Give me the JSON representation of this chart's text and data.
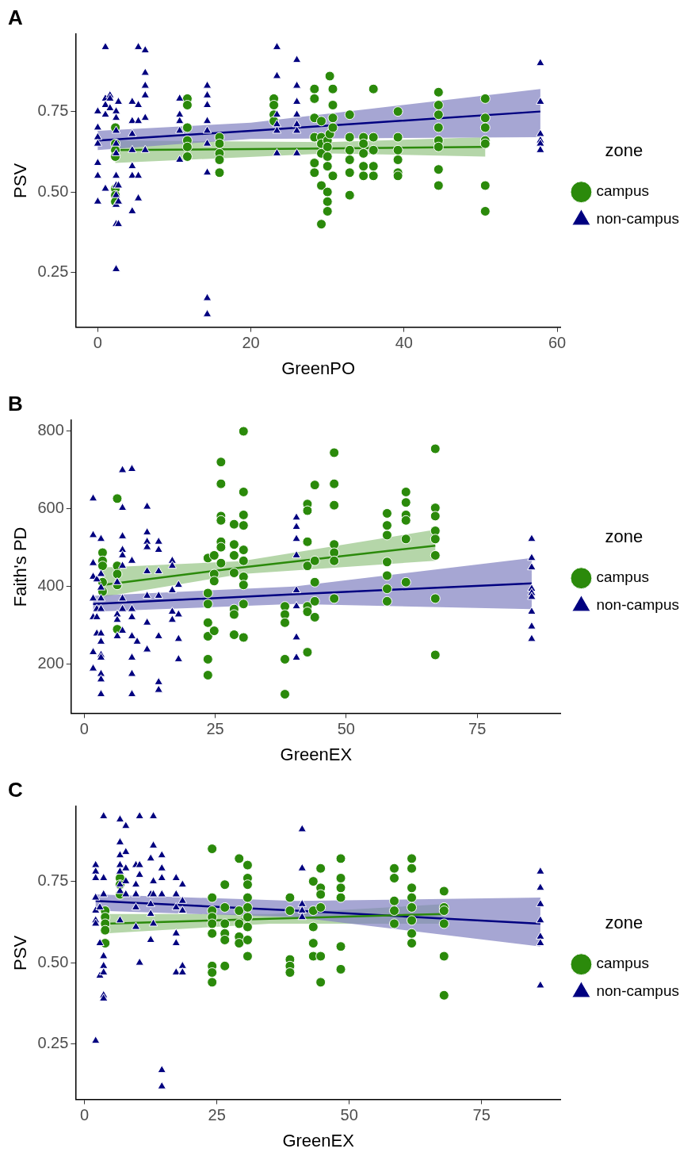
{
  "chart_data": [
    {
      "type": "scatter",
      "title": "A",
      "xlabel": "GreenPO",
      "ylabel": "PSV",
      "legend": "right",
      "legend_title": "zone",
      "grid": false,
      "xlim": [
        -2.9,
        60.5
      ],
      "xticks": [
        0,
        20,
        40,
        60
      ],
      "ylim": [
        0.08,
        0.99
      ],
      "yticks": [
        0.25,
        {
          "value": 0.5,
          "label": "0.50"
        },
        0.75
      ],
      "series": [
        {
          "name": "campus",
          "type": "scatter",
          "marker": "circle",
          "color": "#2b8a0b",
          "x": [
            2.3,
            2.3,
            2.3,
            2.3,
            2.3,
            2.3,
            2.3,
            11.7,
            11.7,
            11.7,
            11.7,
            11.7,
            11.7,
            15.9,
            15.9,
            15.9,
            15.9,
            15.9,
            23,
            23,
            23,
            23,
            28.3,
            28.3,
            28.3,
            28.3,
            28.3,
            28.3,
            29.2,
            29.2,
            29.2,
            29.2,
            29.2,
            29.2,
            30,
            30,
            30,
            30,
            30,
            30,
            30,
            30.3,
            30.3,
            30.7,
            30.7,
            30.7,
            30.7,
            30.7,
            32.9,
            32.9,
            32.9,
            32.9,
            32.9,
            32.9,
            34.7,
            34.7,
            34.7,
            34.7,
            34.7,
            36,
            36,
            36,
            36,
            36,
            39.2,
            39.2,
            39.2,
            39.2,
            39.2,
            39.2,
            44.5,
            44.5,
            44.5,
            44.5,
            44.5,
            44.5,
            44.5,
            44.5,
            50.6,
            50.6,
            50.6,
            50.6,
            50.6,
            50.6,
            50.6
          ],
          "values": [
            0.7,
            0.65,
            0.63,
            0.61,
            0.51,
            0.49,
            0.47,
            0.79,
            0.77,
            0.7,
            0.66,
            0.64,
            0.61,
            0.67,
            0.65,
            0.62,
            0.6,
            0.56,
            0.79,
            0.77,
            0.74,
            0.72,
            0.82,
            0.79,
            0.73,
            0.67,
            0.59,
            0.56,
            0.72,
            0.67,
            0.65,
            0.62,
            0.52,
            0.4,
            0.66,
            0.64,
            0.61,
            0.58,
            0.5,
            0.47,
            0.44,
            0.86,
            0.68,
            0.82,
            0.77,
            0.73,
            0.7,
            0.55,
            0.74,
            0.67,
            0.63,
            0.6,
            0.56,
            0.49,
            0.67,
            0.65,
            0.62,
            0.58,
            0.55,
            0.82,
            0.67,
            0.63,
            0.58,
            0.55,
            0.75,
            0.67,
            0.63,
            0.6,
            0.56,
            0.55,
            0.81,
            0.77,
            0.74,
            0.7,
            0.66,
            0.64,
            0.57,
            0.52,
            0.79,
            0.73,
            0.7,
            0.66,
            0.65,
            0.52,
            0.44
          ]
        },
        {
          "name": "non-campus",
          "type": "scatter",
          "marker": "triangle",
          "color": "#000080",
          "x": [
            0,
            0,
            0,
            0,
            0,
            0,
            0,
            1,
            1,
            1,
            1,
            1,
            1.6,
            1.6,
            1.6,
            2.4,
            2.4,
            2.4,
            2.4,
            2.4,
            2.4,
            2.4,
            2.4,
            2.4,
            2.4,
            2.4,
            2.7,
            2.7,
            2.7,
            2.7,
            4.5,
            4.5,
            4.5,
            4.5,
            4.5,
            4.5,
            4.5,
            5.3,
            5.3,
            5.3,
            5.3,
            5.3,
            6.2,
            6.2,
            6.2,
            6.2,
            6.2,
            6.2,
            10.7,
            10.7,
            10.7,
            10.7,
            10.7,
            14.3,
            14.3,
            14.3,
            14.3,
            14.3,
            14.3,
            14.3,
            14.3,
            14.3,
            23.4,
            23.4,
            23.4,
            23.4,
            23.4,
            23.4,
            26,
            26,
            26,
            26,
            26,
            26,
            26,
            57.8,
            57.8,
            57.8,
            57.8,
            57.8,
            57.8
          ],
          "values": [
            0.75,
            0.7,
            0.67,
            0.65,
            0.59,
            0.55,
            0.47,
            0.95,
            0.79,
            0.77,
            0.74,
            0.51,
            0.8,
            0.79,
            0.76,
            0.75,
            0.73,
            0.69,
            0.65,
            0.62,
            0.55,
            0.52,
            0.49,
            0.46,
            0.4,
            0.26,
            0.78,
            0.52,
            0.47,
            0.4,
            0.78,
            0.72,
            0.68,
            0.63,
            0.58,
            0.55,
            0.44,
            0.95,
            0.77,
            0.72,
            0.55,
            0.48,
            0.94,
            0.87,
            0.83,
            0.8,
            0.73,
            0.63,
            0.79,
            0.74,
            0.72,
            0.69,
            0.6,
            0.83,
            0.8,
            0.77,
            0.72,
            0.69,
            0.65,
            0.56,
            0.17,
            0.12,
            0.95,
            0.86,
            0.74,
            0.71,
            0.69,
            0.62,
            0.91,
            0.83,
            0.78,
            0.74,
            0.71,
            0.69,
            0.62,
            0.9,
            0.78,
            0.68,
            0.66,
            0.65,
            0.63
          ]
        },
        {
          "type": "line",
          "marker": "none",
          "color": "#2b8a0b",
          "x": [
            2.3,
            30,
            50.6
          ],
          "values": [
            0.63,
            0.635,
            0.64
          ],
          "lower": [
            0.59,
            0.62,
            0.61
          ],
          "upper": [
            0.66,
            0.655,
            0.67
          ]
        },
        {
          "type": "line",
          "marker": "none",
          "color": "#000080",
          "x": [
            0,
            20,
            57.8
          ],
          "values": [
            0.66,
            0.69,
            0.75
          ],
          "lower": [
            0.63,
            0.665,
            0.67
          ],
          "upper": [
            0.69,
            0.715,
            0.82
          ]
        }
      ]
    },
    {
      "type": "scatter",
      "title": "B",
      "xlabel": "GreenEX",
      "ylabel": "Faith's PD",
      "legend": "right",
      "legend_title": "zone",
      "grid": false,
      "xlim": [
        -2.5,
        91
      ],
      "xticks": [
        0,
        25,
        50,
        75
      ],
      "ylim": [
        74,
        827
      ],
      "yticks": [
        200,
        400,
        600,
        800
      ],
      "series": [
        {
          "name": "campus",
          "type": "scatter",
          "marker": "circle",
          "color": "#2b8a0b",
          "x": [
            3.5,
            3.5,
            3.5,
            3.5,
            3.5,
            6.3,
            6.3,
            6.3,
            6.3,
            6.3,
            23.6,
            23.6,
            23.6,
            23.6,
            23.6,
            23.6,
            23.6,
            24.8,
            24.8,
            24.8,
            24.8,
            26.1,
            26.1,
            26.1,
            26.1,
            26.1,
            26.1,
            26.1,
            28.6,
            28.6,
            28.6,
            28.6,
            28.6,
            28.6,
            28.6,
            30.4,
            30.4,
            30.4,
            30.4,
            30.4,
            30.4,
            30.4,
            30.4,
            30.4,
            30.4,
            38.3,
            38.3,
            38.3,
            38.3,
            38.3,
            42.6,
            42.6,
            42.6,
            42.6,
            42.6,
            42.6,
            42.6,
            44,
            44,
            44,
            44,
            44,
            47.7,
            47.7,
            47.7,
            47.7,
            47.7,
            47.7,
            47.7,
            57.8,
            57.8,
            57.8,
            57.8,
            57.8,
            57.8,
            57.8,
            61.4,
            61.4,
            61.4,
            61.4,
            61.4,
            61.4,
            67,
            67,
            67,
            67,
            67,
            67,
            67,
            67
          ],
          "values": [
            487,
            466,
            453,
            411,
            387,
            626,
            453,
            432,
            404,
            290,
            473,
            383,
            355,
            307,
            272,
            213,
            172,
            480,
            432,
            414,
            286,
            720,
            664,
            581,
            570,
            515,
            501,
            460,
            560,
            508,
            480,
            435,
            342,
            328,
            276,
            799,
            643,
            584,
            557,
            494,
            466,
            425,
            404,
            355,
            269,
            349,
            328,
            307,
            213,
            123,
            612,
            595,
            515,
            453,
            349,
            335,
            231,
            661,
            466,
            411,
            362,
            321,
            744,
            664,
            609,
            508,
            487,
            466,
            369,
            588,
            557,
            532,
            463,
            428,
            394,
            362,
            643,
            616,
            584,
            570,
            522,
            411,
            754,
            602,
            581,
            543,
            522,
            480,
            369,
            224
          ]
        },
        {
          "name": "non-campus",
          "type": "scatter",
          "marker": "triangle",
          "color": "#000080",
          "x": [
            1.7,
            1.7,
            1.7,
            1.7,
            1.7,
            1.7,
            1.7,
            1.7,
            2.4,
            2.4,
            2.4,
            2.4,
            3.2,
            3.2,
            3.2,
            3.2,
            3.2,
            3.2,
            3.2,
            3.2,
            3.2,
            3.2,
            3.2,
            3.2,
            6.3,
            6.3,
            6.3,
            6.3,
            7.3,
            7.3,
            7.3,
            7.3,
            7.3,
            7.3,
            7.3,
            7.3,
            7.3,
            9.1,
            9.1,
            9.1,
            9.1,
            9.1,
            9.1,
            9.1,
            9.1,
            10.1,
            12,
            12,
            12,
            12,
            12,
            12,
            12,
            12,
            14.2,
            14.2,
            14.2,
            14.2,
            14.2,
            14.2,
            14.2,
            16.8,
            16.8,
            16.8,
            16.8,
            16.8,
            18,
            18,
            18,
            18,
            40.5,
            40.5,
            40.5,
            40.5,
            40.5,
            40.5,
            40.5,
            40.5,
            85.4,
            85.4,
            85.4,
            85.4,
            85.4,
            85.4,
            85.4,
            85.4,
            85.4
          ],
          "values": [
            626,
            532,
            460,
            425,
            369,
            321,
            231,
            189,
            418,
            342,
            321,
            279,
            522,
            432,
            397,
            369,
            342,
            279,
            258,
            224,
            217,
            175,
            161,
            123,
            411,
            328,
            314,
            272,
            699,
            602,
            529,
            494,
            480,
            453,
            369,
            342,
            286,
            702,
            466,
            342,
            321,
            272,
            217,
            175,
            123,
            258,
            605,
            539,
            515,
            501,
            439,
            376,
            307,
            238,
            515,
            494,
            439,
            376,
            272,
            154,
            134,
            466,
            453,
            390,
            335,
            314,
            404,
            328,
            265,
            213,
            577,
            553,
            522,
            480,
            390,
            349,
            269,
            217,
            522,
            473,
            449,
            394,
            383,
            373,
            335,
            297,
            265
          ]
        },
        {
          "type": "line",
          "marker": "none",
          "color": "#2b8a0b",
          "x": [
            3.5,
            30,
            67
          ],
          "values": [
            404,
            449,
            505
          ],
          "lower": [
            373,
            432,
            466
          ],
          "upper": [
            449,
            465,
            546
          ]
        },
        {
          "type": "line",
          "marker": "none",
          "color": "#000080",
          "x": [
            1.7,
            40,
            85.4
          ],
          "values": [
            355,
            380,
            408
          ],
          "lower": [
            335,
            355,
            342
          ],
          "upper": [
            376,
            400,
            473
          ]
        }
      ]
    },
    {
      "type": "scatter",
      "title": "C",
      "xlabel": "GreenEX",
      "ylabel": "PSV",
      "legend": "right",
      "legend_title": "zone",
      "grid": false,
      "xlim": [
        -1.7,
        90
      ],
      "xticks": [
        0,
        25,
        50,
        75
      ],
      "ylim": [
        0.08,
        0.98
      ],
      "yticks": [
        0.25,
        {
          "value": 0.5,
          "label": "0.50"
        },
        0.75
      ],
      "series": [
        {
          "name": "campus",
          "type": "scatter",
          "marker": "circle",
          "color": "#2b8a0b",
          "x": [
            3.9,
            3.9,
            3.9,
            3.9,
            3.9,
            6.7,
            6.7,
            6.7,
            24.1,
            24.1,
            24.1,
            24.1,
            24.1,
            24.1,
            24.1,
            24.1,
            24.1,
            26.5,
            26.5,
            26.5,
            26.5,
            26.5,
            26.5,
            29.2,
            29.2,
            29.2,
            29.2,
            29.2,
            30.8,
            30.8,
            30.8,
            30.8,
            30.8,
            30.8,
            30.8,
            30.8,
            30.8,
            38.8,
            38.8,
            38.8,
            38.8,
            38.8,
            43.2,
            43.2,
            43.2,
            43.2,
            43.2,
            44.6,
            44.6,
            44.6,
            44.6,
            44.6,
            44.6,
            48.4,
            48.4,
            48.4,
            48.4,
            48.4,
            48.4,
            58.5,
            58.5,
            58.5,
            58.5,
            58.5,
            61.8,
            61.8,
            61.8,
            61.8,
            61.8,
            61.8,
            61.8,
            61.8,
            67.9,
            67.9,
            67.9,
            67.9,
            67.9,
            67.9
          ],
          "values": [
            0.66,
            0.64,
            0.62,
            0.6,
            0.56,
            0.76,
            0.74,
            0.71,
            0.85,
            0.7,
            0.66,
            0.64,
            0.62,
            0.59,
            0.49,
            0.47,
            0.44,
            0.74,
            0.67,
            0.62,
            0.59,
            0.57,
            0.49,
            0.82,
            0.66,
            0.62,
            0.58,
            0.56,
            0.8,
            0.76,
            0.74,
            0.7,
            0.67,
            0.64,
            0.61,
            0.57,
            0.52,
            0.7,
            0.66,
            0.51,
            0.49,
            0.47,
            0.75,
            0.66,
            0.61,
            0.56,
            0.52,
            0.79,
            0.73,
            0.71,
            0.67,
            0.52,
            0.44,
            0.82,
            0.76,
            0.73,
            0.7,
            0.55,
            0.48,
            0.79,
            0.76,
            0.69,
            0.66,
            0.62,
            0.82,
            0.79,
            0.73,
            0.7,
            0.67,
            0.63,
            0.59,
            0.56,
            0.72,
            0.67,
            0.66,
            0.62,
            0.52,
            0.4
          ]
        },
        {
          "name": "non-campus",
          "type": "scatter",
          "marker": "triangle",
          "color": "#000080",
          "x": [
            2.1,
            2.1,
            2.1,
            2.1,
            2.1,
            2.1,
            2.1,
            2.1,
            2.9,
            2.9,
            2.9,
            3.6,
            3.6,
            3.6,
            3.6,
            3.6,
            3.6,
            3.6,
            3.6,
            6.7,
            6.7,
            6.7,
            6.7,
            6.7,
            6.7,
            6.7,
            6.7,
            7.8,
            7.8,
            7.8,
            7.8,
            7.8,
            9.7,
            9.7,
            9.7,
            9.7,
            9.7,
            10.4,
            10.4,
            10.4,
            10.4,
            12.5,
            12.5,
            12.5,
            12.5,
            12.5,
            13,
            13,
            13,
            13,
            13,
            14.6,
            14.6,
            14.6,
            14.6,
            14.6,
            14.6,
            17.3,
            17.3,
            17.3,
            17.3,
            17.3,
            17.3,
            18.5,
            18.5,
            18.5,
            18.5,
            18.5,
            41.1,
            41.1,
            41.1,
            41.1,
            41.1,
            86.1,
            86.1,
            86.1,
            86.1,
            86.1,
            86.1,
            86.1
          ],
          "values": [
            0.8,
            0.78,
            0.76,
            0.7,
            0.66,
            0.63,
            0.62,
            0.26,
            0.67,
            0.56,
            0.46,
            0.95,
            0.76,
            0.71,
            0.52,
            0.49,
            0.47,
            0.4,
            0.39,
            0.94,
            0.87,
            0.83,
            0.8,
            0.78,
            0.74,
            0.72,
            0.63,
            0.92,
            0.84,
            0.79,
            0.75,
            0.71,
            0.8,
            0.74,
            0.71,
            0.67,
            0.61,
            0.95,
            0.8,
            0.77,
            0.5,
            0.82,
            0.71,
            0.68,
            0.65,
            0.57,
            0.95,
            0.86,
            0.75,
            0.71,
            0.62,
            0.83,
            0.79,
            0.76,
            0.71,
            0.17,
            0.12,
            0.76,
            0.71,
            0.67,
            0.59,
            0.56,
            0.47,
            0.74,
            0.69,
            0.66,
            0.49,
            0.47,
            0.91,
            0.79,
            0.68,
            0.66,
            0.64,
            0.78,
            0.73,
            0.68,
            0.63,
            0.58,
            0.56,
            0.43
          ]
        },
        {
          "type": "line",
          "marker": "none",
          "color": "#2b8a0b",
          "x": [
            3.9,
            35,
            67.9
          ],
          "values": [
            0.62,
            0.635,
            0.65
          ],
          "lower": [
            0.59,
            0.62,
            0.62
          ],
          "upper": [
            0.65,
            0.65,
            0.68
          ]
        },
        {
          "type": "line",
          "marker": "none",
          "color": "#000080",
          "x": [
            2.1,
            40,
            86.1
          ],
          "values": [
            0.69,
            0.66,
            0.62
          ],
          "lower": [
            0.66,
            0.64,
            0.55
          ],
          "upper": [
            0.71,
            0.69,
            0.7
          ]
        }
      ]
    }
  ]
}
